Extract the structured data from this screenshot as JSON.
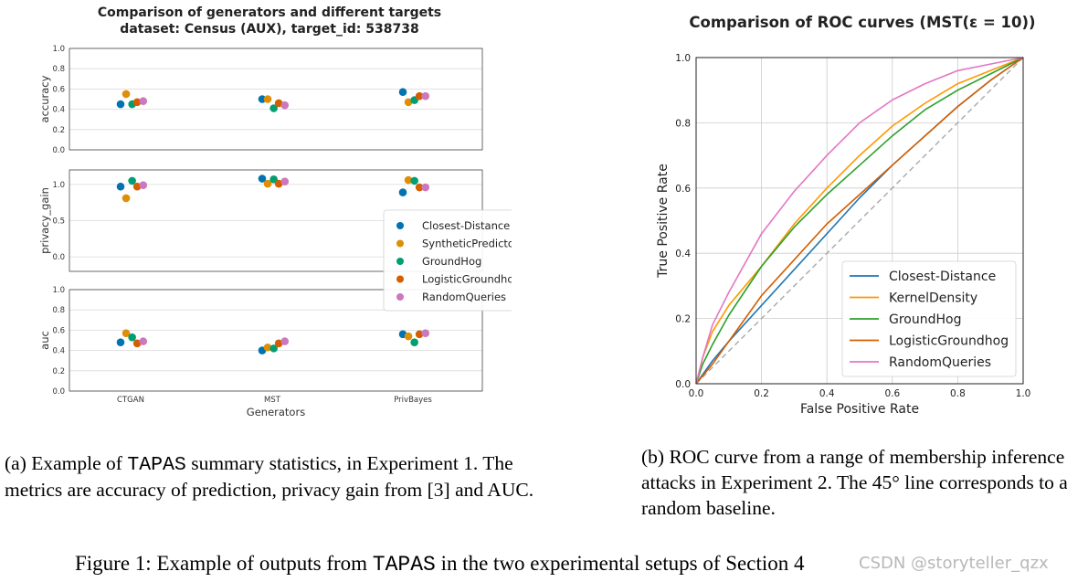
{
  "chart_data": [
    {
      "type": "scatter",
      "title": "Comparison of generators and different targets",
      "subtitle": "dataset: Census (AUX), target_id: 538738",
      "xlabel": "Generators",
      "categories": [
        "CTGAN",
        "MST",
        "PrivBayes"
      ],
      "series_names": [
        "Closest-Distance",
        "SyntheticPredictor",
        "GroundHog",
        "LogisticGroundhog",
        "RandomQueries"
      ],
      "colors": [
        "#0173b2",
        "#de8f05",
        "#029e73",
        "#d55e00",
        "#cc78bc"
      ],
      "legend_position": "right",
      "panels": [
        {
          "ylabel": "accuracy",
          "ylim": [
            0,
            1.0
          ],
          "yticks": [
            "0.0",
            "0.2",
            "0.4",
            "0.6",
            "0.8",
            "1.0"
          ],
          "values": [
            [
              0.45,
              0.5,
              0.57
            ],
            [
              0.55,
              0.5,
              0.47
            ],
            [
              0.45,
              0.41,
              0.49
            ],
            [
              0.47,
              0.46,
              0.53
            ],
            [
              0.48,
              0.44,
              0.53
            ]
          ]
        },
        {
          "ylabel": "privacy_gain",
          "ylim": [
            -0.2,
            1.2
          ],
          "yticks": [
            "0.0",
            "0.5",
            "1.0"
          ],
          "values": [
            [
              0.97,
              1.08,
              0.89
            ],
            [
              0.81,
              1.01,
              1.06
            ],
            [
              1.05,
              1.07,
              1.05
            ],
            [
              0.97,
              1.01,
              0.96
            ],
            [
              0.99,
              1.04,
              0.96
            ]
          ]
        },
        {
          "ylabel": "auc",
          "ylim": [
            0,
            1.0
          ],
          "yticks": [
            "0.0",
            "0.2",
            "0.4",
            "0.6",
            "0.8",
            "1.0"
          ],
          "values": [
            [
              0.48,
              0.4,
              0.56
            ],
            [
              0.57,
              0.43,
              0.54
            ],
            [
              0.53,
              0.42,
              0.48
            ],
            [
              0.47,
              0.47,
              0.56
            ],
            [
              0.49,
              0.49,
              0.57
            ]
          ]
        }
      ]
    },
    {
      "type": "line",
      "title": "Comparison of ROC curves (MST(ε = 10))",
      "xlabel": "False Positive Rate",
      "ylabel": "True Positive Rate",
      "xlim": [
        0,
        1.0
      ],
      "ylim": [
        0,
        1.0
      ],
      "ticks": [
        "0.0",
        "0.2",
        "0.4",
        "0.6",
        "0.8",
        "1.0"
      ],
      "grid": true,
      "legend_position": "lower-right",
      "baseline": "dashed 45° line",
      "series": [
        {
          "name": "Closest-Distance",
          "color": "#1f77b4",
          "points": [
            [
              0,
              0
            ],
            [
              0.05,
              0.07
            ],
            [
              0.1,
              0.13
            ],
            [
              0.2,
              0.24
            ],
            [
              0.3,
              0.35
            ],
            [
              0.4,
              0.46
            ],
            [
              0.5,
              0.57
            ],
            [
              0.6,
              0.67
            ],
            [
              0.7,
              0.76
            ],
            [
              0.8,
              0.85
            ],
            [
              0.9,
              0.93
            ],
            [
              1,
              1
            ]
          ]
        },
        {
          "name": "KernelDensity",
          "color": "#ff9900",
          "points": [
            [
              0,
              0
            ],
            [
              0.02,
              0.08
            ],
            [
              0.05,
              0.16
            ],
            [
              0.1,
              0.24
            ],
            [
              0.2,
              0.36
            ],
            [
              0.3,
              0.49
            ],
            [
              0.4,
              0.6
            ],
            [
              0.5,
              0.7
            ],
            [
              0.6,
              0.79
            ],
            [
              0.7,
              0.86
            ],
            [
              0.8,
              0.92
            ],
            [
              0.9,
              0.96
            ],
            [
              1,
              1
            ]
          ]
        },
        {
          "name": "GroundHog",
          "color": "#2ca02c",
          "points": [
            [
              0,
              0
            ],
            [
              0.02,
              0.06
            ],
            [
              0.05,
              0.12
            ],
            [
              0.1,
              0.21
            ],
            [
              0.2,
              0.36
            ],
            [
              0.3,
              0.48
            ],
            [
              0.4,
              0.58
            ],
            [
              0.5,
              0.67
            ],
            [
              0.6,
              0.76
            ],
            [
              0.7,
              0.84
            ],
            [
              0.8,
              0.9
            ],
            [
              0.9,
              0.95
            ],
            [
              1,
              1
            ]
          ]
        },
        {
          "name": "LogisticGroundhog",
          "color": "#d55e00",
          "points": [
            [
              0,
              0
            ],
            [
              0.05,
              0.06
            ],
            [
              0.1,
              0.13
            ],
            [
              0.2,
              0.27
            ],
            [
              0.3,
              0.38
            ],
            [
              0.4,
              0.49
            ],
            [
              0.5,
              0.58
            ],
            [
              0.6,
              0.67
            ],
            [
              0.7,
              0.76
            ],
            [
              0.8,
              0.85
            ],
            [
              0.9,
              0.93
            ],
            [
              1,
              1
            ]
          ]
        },
        {
          "name": "RandomQueries",
          "color": "#e377c2",
          "points": [
            [
              0,
              0
            ],
            [
              0.02,
              0.08
            ],
            [
              0.05,
              0.18
            ],
            [
              0.1,
              0.28
            ],
            [
              0.2,
              0.46
            ],
            [
              0.3,
              0.59
            ],
            [
              0.4,
              0.7
            ],
            [
              0.5,
              0.8
            ],
            [
              0.6,
              0.87
            ],
            [
              0.7,
              0.92
            ],
            [
              0.8,
              0.96
            ],
            [
              0.9,
              0.98
            ],
            [
              1,
              1
            ]
          ]
        }
      ]
    }
  ],
  "captions": {
    "a_pre": "(a) Example of ",
    "a_mono": "TAPAS",
    "a_post": " summary statistics, in Experiment 1. The metrics are accuracy of prediction, privacy gain from [3] and AUC.",
    "b": "(b) ROC curve from a range of membership inference attacks in Experiment 2. The 45° line corresponds to a random baseline.",
    "figure_pre": "Figure 1: Example of outputs from ",
    "figure_mono": "TAPAS",
    "figure_post": " in the two experimental setups of Section 4"
  },
  "watermark": "CSDN @storyteller_qzx"
}
